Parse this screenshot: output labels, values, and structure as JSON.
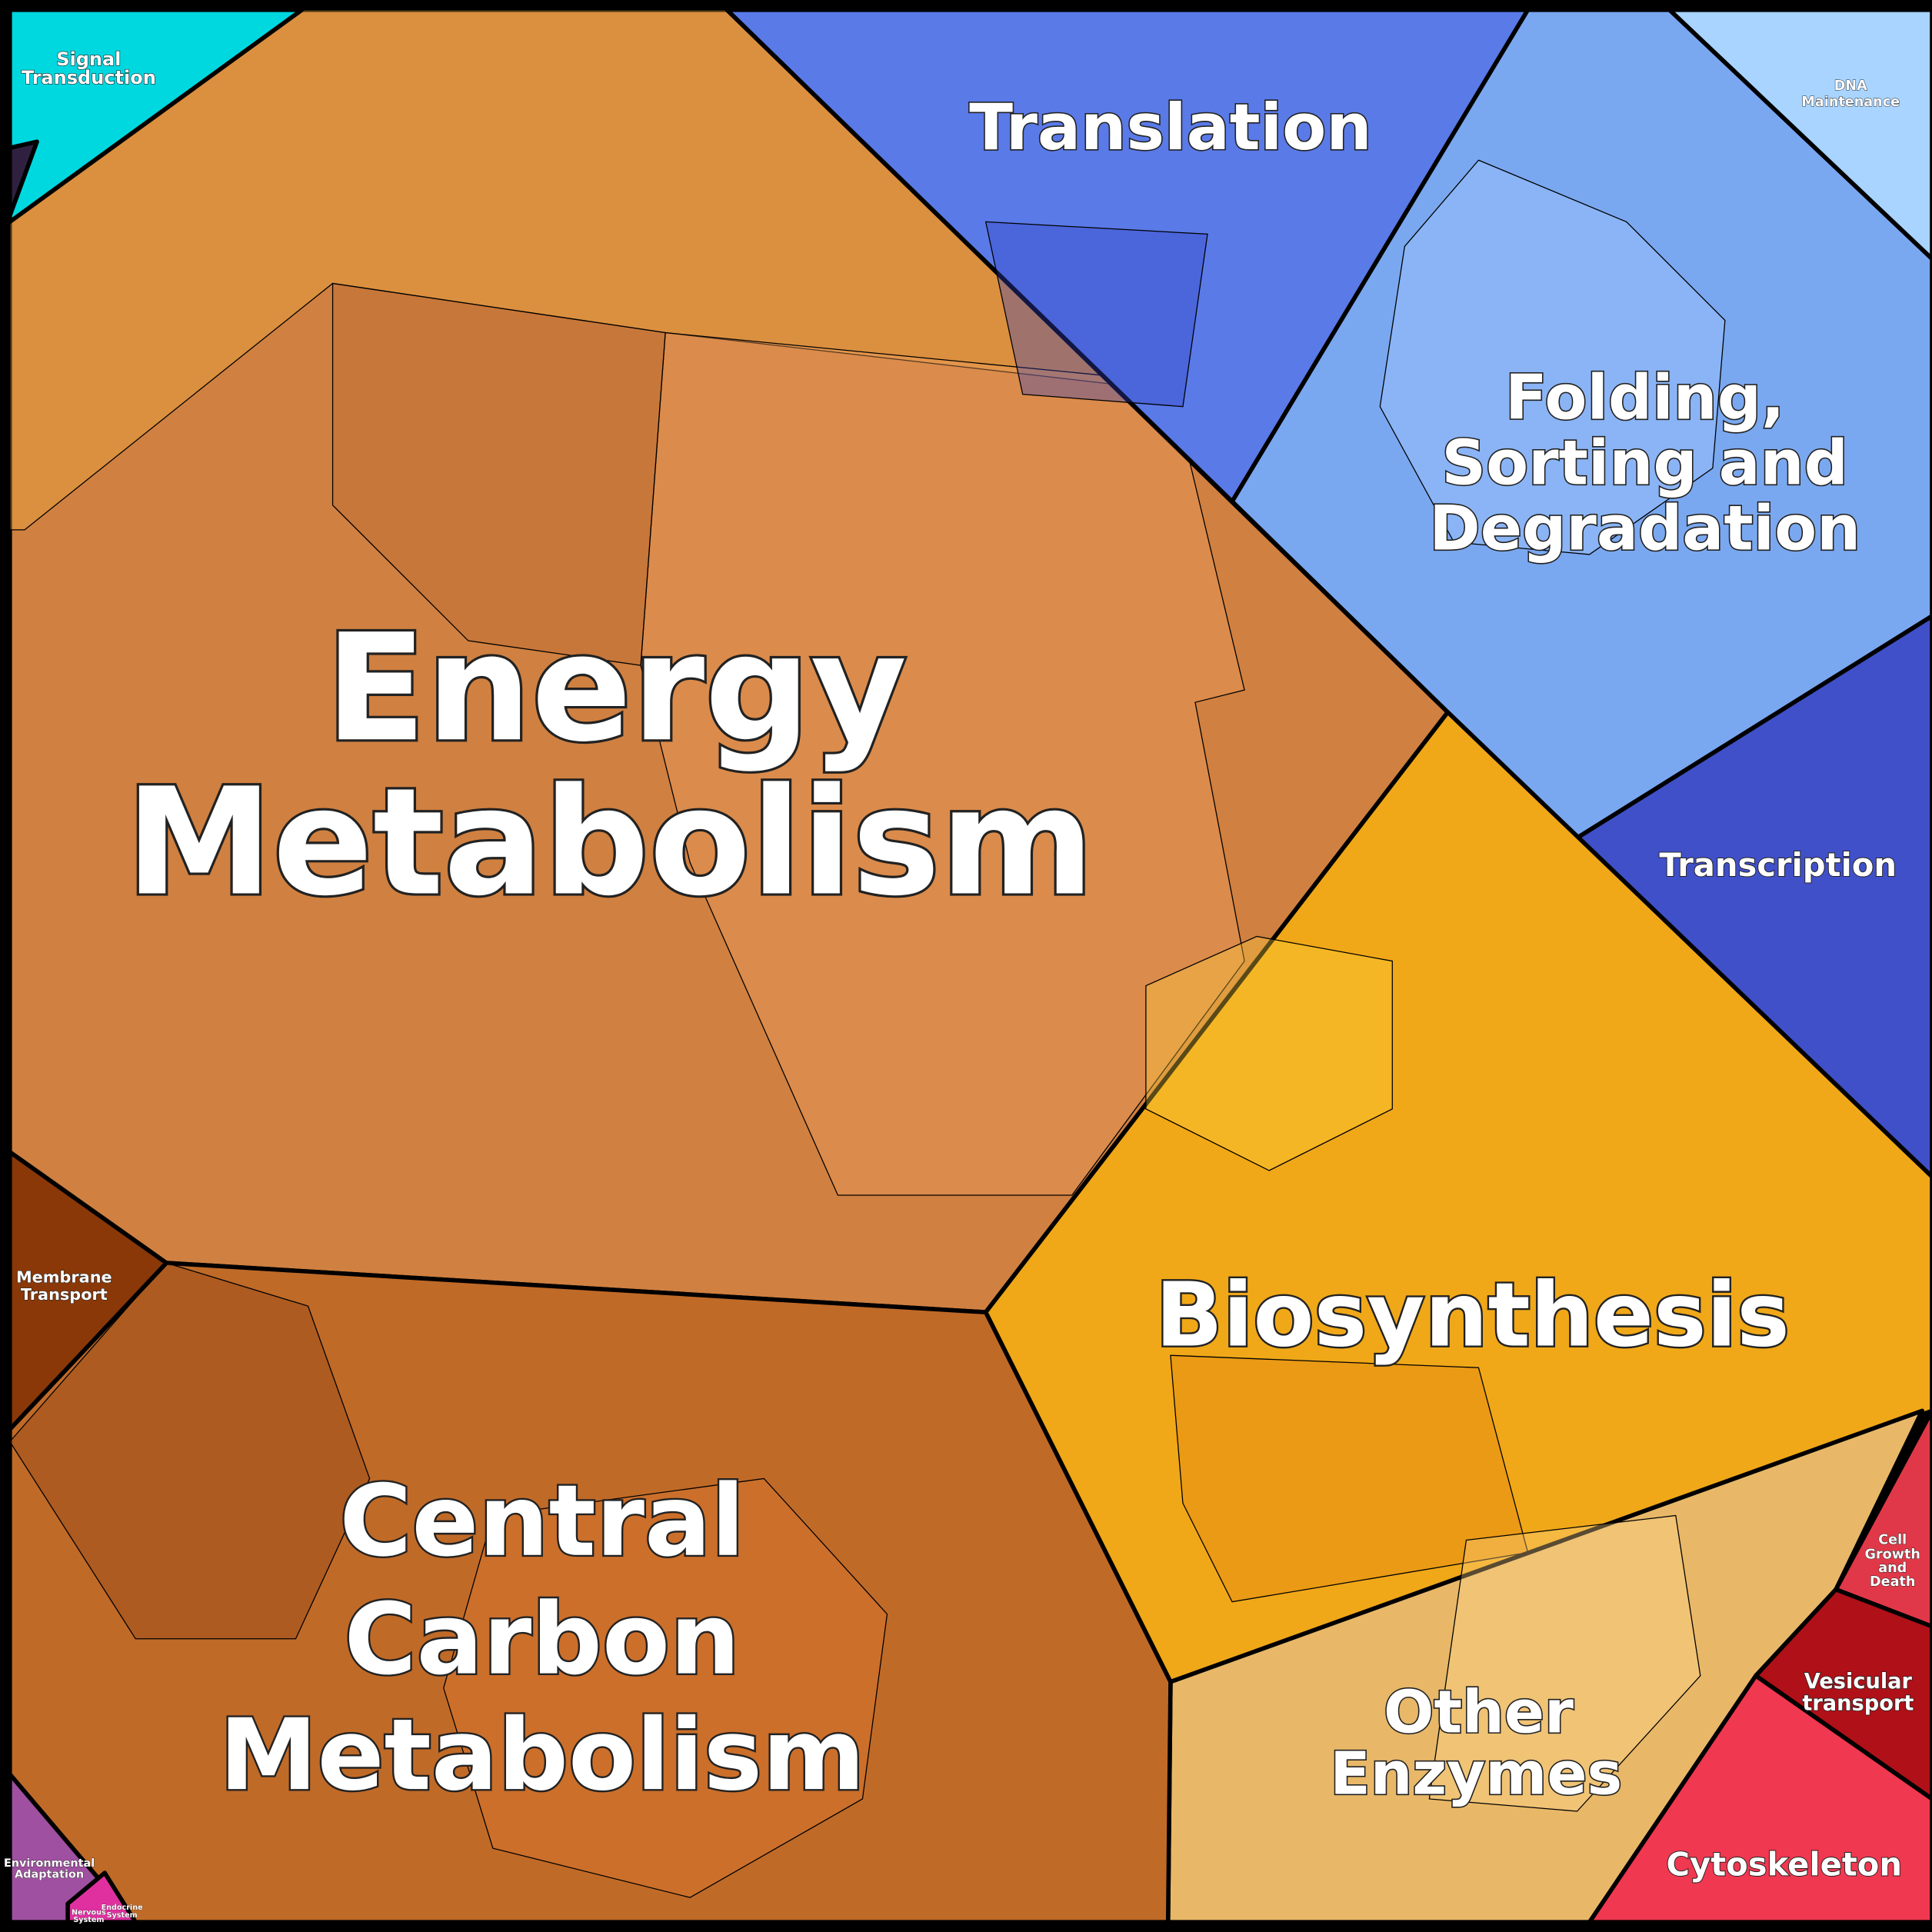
{
  "regions": [
    {
      "lines": [
        "Energy",
        "Metabolism"
      ]
    },
    {
      "lines": [
        "Central",
        "Carbon",
        "Metabolism"
      ]
    },
    {
      "lines": [
        "Translation"
      ]
    },
    {
      "lines": [
        "Folding,",
        "Sorting and",
        "Degradation"
      ]
    },
    {
      "lines": [
        "Biosynthesis"
      ]
    },
    {
      "lines": [
        "Other",
        "Enzymes"
      ]
    },
    {
      "lines": [
        "Transcription"
      ]
    },
    {
      "lines": [
        "Cytoskeleton"
      ]
    },
    {
      "lines": [
        "Vesicular",
        "transport"
      ]
    },
    {
      "lines": [
        "Cell",
        "Growth",
        "and",
        "Death"
      ]
    },
    {
      "lines": [
        "Signal",
        "Transduction"
      ]
    },
    {
      "lines": [
        "DNA",
        "Maintenance"
      ]
    },
    {
      "lines": [
        "Membrane",
        "Transport"
      ]
    },
    {
      "lines": [
        "Environmental",
        "Adaptation"
      ]
    },
    {
      "lines": [
        "Nervous",
        "System"
      ]
    },
    {
      "lines": [
        "Endocrine",
        "System"
      ]
    }
  ]
}
